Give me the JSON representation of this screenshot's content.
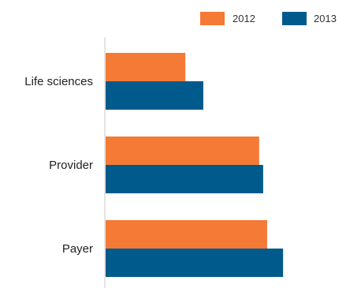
{
  "chart_data": {
    "type": "bar",
    "orientation": "horizontal",
    "categories": [
      "Life sciences",
      "Provider",
      "Payer"
    ],
    "series": [
      {
        "name": "2012",
        "color": "#f47a36",
        "values": [
          40,
          77,
          81
        ],
        "value_labels": [
          "",
          "",
          ""
        ]
      },
      {
        "name": "2013",
        "color": "#005a8c",
        "values": [
          49,
          79,
          89
        ],
        "value_labels": [
          "",
          "",
          ""
        ]
      }
    ],
    "xlim": [
      0,
      120
    ],
    "legend_position": "top-right",
    "grid": false,
    "title": "",
    "xlabel": "",
    "ylabel": ""
  }
}
